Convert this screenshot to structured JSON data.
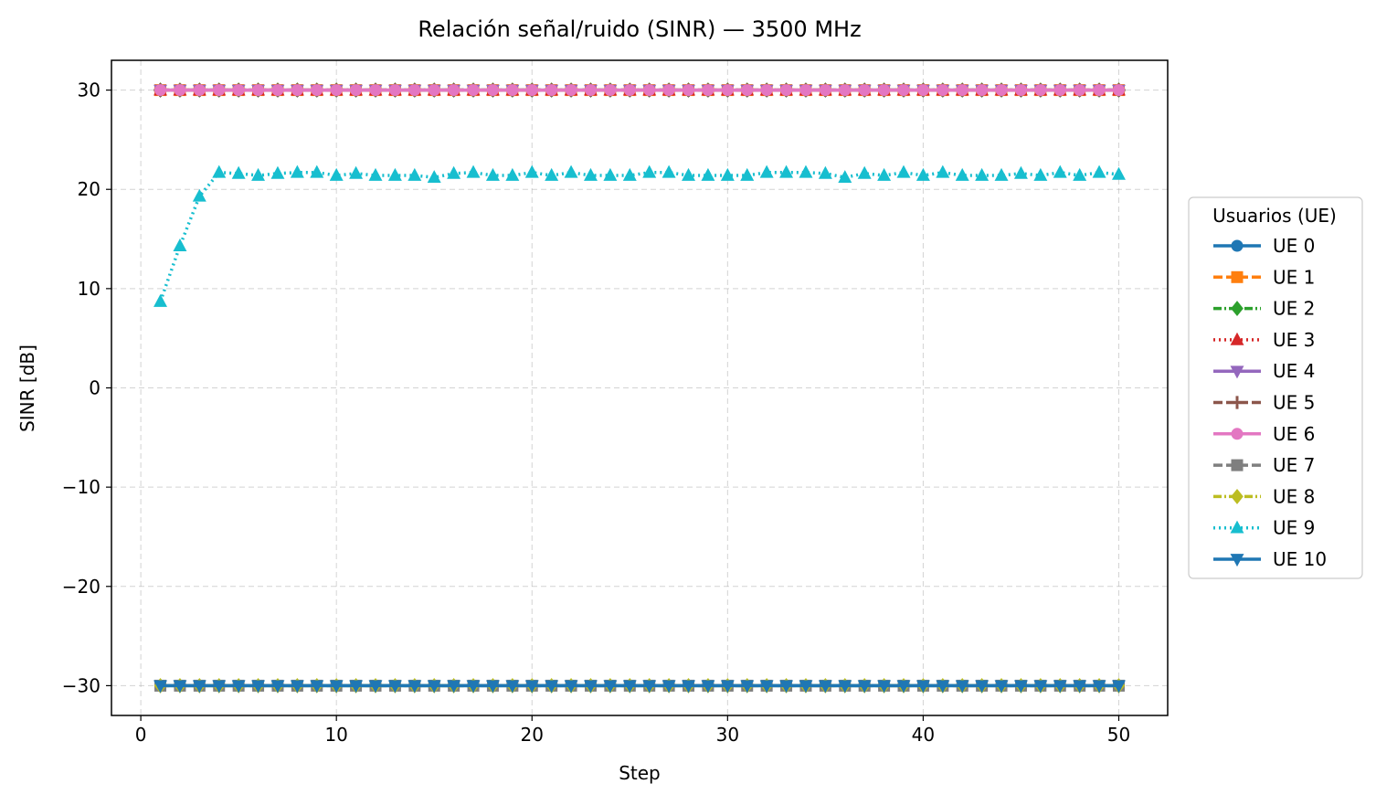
{
  "chart_data": {
    "type": "line",
    "title": "Relación señal/ruido (SINR) — 3500 MHz",
    "xlabel": "Step",
    "ylabel": "SINR [dB]",
    "xlim": [
      -1.5,
      52.5
    ],
    "ylim": [
      -33,
      33
    ],
    "xticks": [
      0,
      10,
      20,
      30,
      40,
      50
    ],
    "xtick_labels": [
      "0",
      "10",
      "20",
      "30",
      "40",
      "50"
    ],
    "yticks": [
      -30,
      -20,
      -10,
      0,
      10,
      20,
      30
    ],
    "ytick_labels": [
      "−30",
      "−20",
      "−10",
      "0",
      "10",
      "20",
      "30"
    ],
    "grid": true,
    "legend": {
      "title": "Usuarios (UE)",
      "placement": "outside-right"
    },
    "x": [
      1,
      2,
      3,
      4,
      5,
      6,
      7,
      8,
      9,
      10,
      11,
      12,
      13,
      14,
      15,
      16,
      17,
      18,
      19,
      20,
      21,
      22,
      23,
      24,
      25,
      26,
      27,
      28,
      29,
      30,
      31,
      32,
      33,
      34,
      35,
      36,
      37,
      38,
      39,
      40,
      41,
      42,
      43,
      44,
      45,
      46,
      47,
      48,
      49,
      50
    ],
    "series": [
      {
        "name": "UE 0",
        "color": "#1f77b4",
        "marker": "circle",
        "dash": "solid",
        "constant": -30
      },
      {
        "name": "UE 1",
        "color": "#ff7f0e",
        "marker": "square",
        "dash": "dashed",
        "constant": 30
      },
      {
        "name": "UE 2",
        "color": "#2ca02c",
        "marker": "diamond",
        "dash": "dashdot",
        "constant": 30
      },
      {
        "name": "UE 3",
        "color": "#d62728",
        "marker": "triangle-up",
        "dash": "dotted",
        "constant": 30
      },
      {
        "name": "UE 4",
        "color": "#9467bd",
        "marker": "triangle-down",
        "dash": "solid",
        "constant": 30
      },
      {
        "name": "UE 5",
        "color": "#8c564b",
        "marker": "plus",
        "dash": "dashed",
        "constant": 30
      },
      {
        "name": "UE 6",
        "color": "#e377c2",
        "marker": "circle",
        "dash": "solid",
        "constant": 30
      },
      {
        "name": "UE 7",
        "color": "#7f7f7f",
        "marker": "square",
        "dash": "dashed",
        "constant": -30
      },
      {
        "name": "UE 8",
        "color": "#bcbd22",
        "marker": "diamond",
        "dash": "dashdot",
        "constant": -30
      },
      {
        "name": "UE 9",
        "color": "#17becf",
        "marker": "triangle-up",
        "dash": "dotted",
        "values": [
          8.7,
          14.3,
          19.3,
          21.7,
          21.6,
          21.4,
          21.6,
          21.7,
          21.7,
          21.4,
          21.6,
          21.4,
          21.4,
          21.4,
          21.2,
          21.6,
          21.7,
          21.4,
          21.4,
          21.7,
          21.4,
          21.7,
          21.4,
          21.4,
          21.4,
          21.7,
          21.7,
          21.4,
          21.4,
          21.4,
          21.4,
          21.7,
          21.7,
          21.7,
          21.6,
          21.2,
          21.6,
          21.4,
          21.7,
          21.4,
          21.7,
          21.4,
          21.4,
          21.4,
          21.6,
          21.4,
          21.7,
          21.4,
          21.7,
          21.5
        ]
      },
      {
        "name": "UE 10",
        "color": "#1f77b4",
        "marker": "triangle-down",
        "dash": "solid",
        "constant": -30
      }
    ]
  }
}
